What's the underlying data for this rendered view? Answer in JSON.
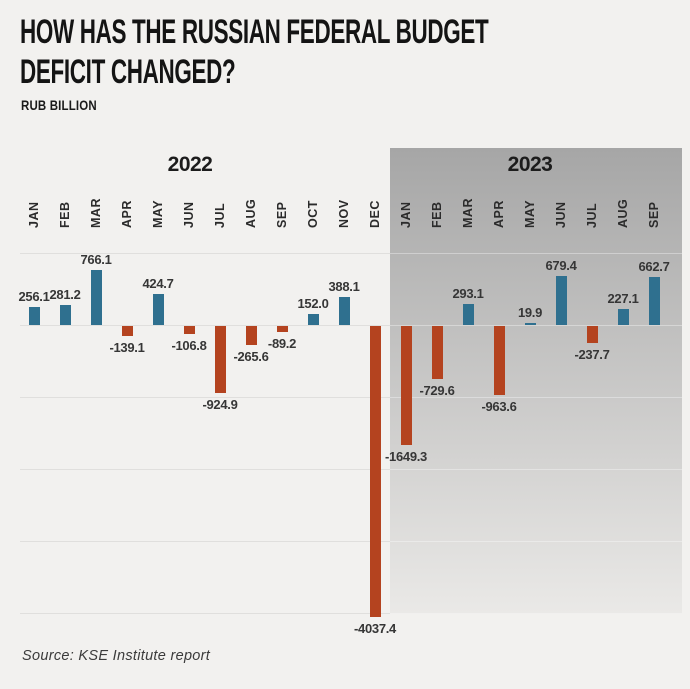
{
  "header": {
    "title_lines": [
      "HOW HAS THE RUSSIAN FEDERAL BUDGET",
      "DEFICIT CHANGED?"
    ],
    "subtitle": "RUB BILLION"
  },
  "footer": {
    "source": "Source: KSE Institute report"
  },
  "colors": {
    "background": "#f2f1ef",
    "positive_bar": "#2f708f",
    "negative_bar": "#b4431f",
    "highlight_top": "#a6a6a6",
    "highlight_bottom": "#eae9e7",
    "gridline": "#e0dfdd",
    "value_label": "#363636"
  },
  "chart_data": {
    "type": "bar",
    "title": "HOW HAS THE RUSSIAN FEDERAL BUDGET DEFICIT CHANGED?",
    "ylabel": "RUB BILLION",
    "ylim": [
      -4200,
      1000
    ],
    "gridline_values": [
      1000,
      0,
      -1000,
      -2000,
      -3000,
      -4000
    ],
    "grid": "on",
    "legend": "none",
    "highlighted_group": "2023",
    "groups": [
      {
        "year": "2022",
        "categories": [
          "JAN",
          "FEB",
          "MAR",
          "APR",
          "MAY",
          "JUN",
          "JUL",
          "AUG",
          "SEP",
          "OCT",
          "NOV",
          "DEC"
        ],
        "values": [
          256.1,
          281.2,
          766.1,
          -139.1,
          424.7,
          -106.8,
          -924.9,
          -265.6,
          -89.2,
          152.0,
          388.1,
          -4037.4
        ]
      },
      {
        "year": "2023",
        "categories": [
          "JAN",
          "FEB",
          "MAR",
          "APR",
          "MAY",
          "JUN",
          "JUL",
          "AUG",
          "SEP"
        ],
        "values": [
          -1649.3,
          -729.6,
          293.1,
          -963.6,
          19.9,
          679.4,
          -237.7,
          227.1,
          662.7
        ]
      }
    ]
  }
}
